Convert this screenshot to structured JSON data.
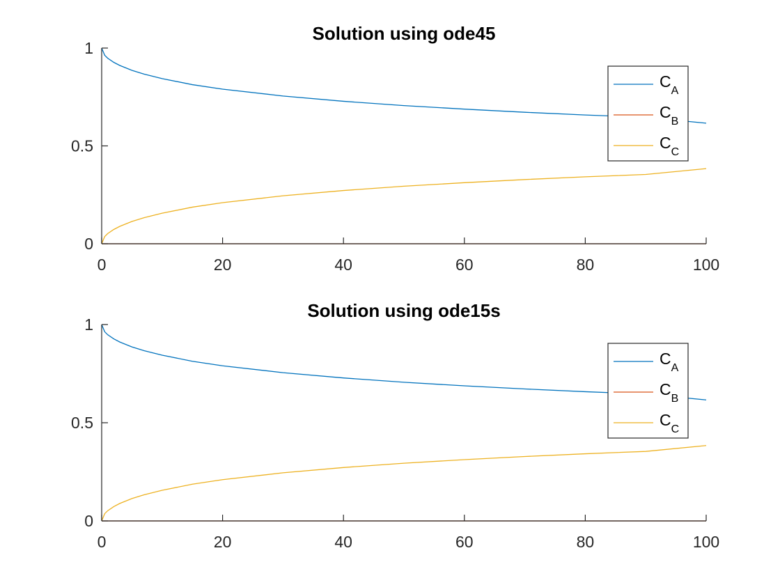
{
  "chart_data": [
    {
      "type": "line",
      "title": "Solution using ode45",
      "xlim": [
        0,
        100
      ],
      "ylim": [
        0,
        1
      ],
      "xticks": [
        0,
        20,
        40,
        60,
        80,
        100
      ],
      "xtick_labels": [
        "0",
        "20",
        "40",
        "60",
        "80",
        "100"
      ],
      "yticks": [
        0,
        0.5,
        1
      ],
      "ytick_labels": [
        "0",
        "0.5",
        "1"
      ],
      "grid": false,
      "legend_position": "top-right",
      "x": [
        0,
        0.5,
        1,
        2,
        3,
        5,
        7,
        10,
        15,
        20,
        30,
        40,
        50,
        60,
        70,
        80,
        90,
        100
      ],
      "series": [
        {
          "name_main": "C",
          "name_sub": "A",
          "color": "#0072BD",
          "values": [
            1.0,
            0.963,
            0.948,
            0.927,
            0.911,
            0.886,
            0.867,
            0.844,
            0.813,
            0.79,
            0.755,
            0.728,
            0.706,
            0.688,
            0.672,
            0.658,
            0.646,
            0.616
          ]
        },
        {
          "name_main": "C",
          "name_sub": "B",
          "color": "#D95319",
          "values": [
            0,
            0,
            0,
            0,
            0,
            0,
            0,
            0,
            0,
            0,
            0,
            0,
            0,
            0,
            0,
            0,
            0,
            0
          ]
        },
        {
          "name_main": "C",
          "name_sub": "C",
          "color": "#EDB120",
          "values": [
            0,
            0.037,
            0.052,
            0.073,
            0.089,
            0.114,
            0.133,
            0.156,
            0.187,
            0.21,
            0.245,
            0.272,
            0.294,
            0.312,
            0.328,
            0.342,
            0.354,
            0.384
          ]
        }
      ]
    },
    {
      "type": "line",
      "title": "Solution using ode15s",
      "xlim": [
        0,
        100
      ],
      "ylim": [
        0,
        1
      ],
      "xticks": [
        0,
        20,
        40,
        60,
        80,
        100
      ],
      "xtick_labels": [
        "0",
        "20",
        "40",
        "60",
        "80",
        "100"
      ],
      "yticks": [
        0,
        0.5,
        1
      ],
      "ytick_labels": [
        "0",
        "0.5",
        "1"
      ],
      "grid": false,
      "legend_position": "top-right",
      "x": [
        0,
        0.5,
        1,
        2,
        3,
        5,
        7,
        10,
        15,
        20,
        30,
        40,
        50,
        60,
        70,
        80,
        90,
        100
      ],
      "series": [
        {
          "name_main": "C",
          "name_sub": "A",
          "color": "#0072BD",
          "values": [
            1.0,
            0.963,
            0.948,
            0.927,
            0.911,
            0.886,
            0.867,
            0.844,
            0.813,
            0.79,
            0.755,
            0.728,
            0.706,
            0.688,
            0.672,
            0.658,
            0.646,
            0.616
          ]
        },
        {
          "name_main": "C",
          "name_sub": "B",
          "color": "#D95319",
          "values": [
            0,
            0,
            0,
            0,
            0,
            0,
            0,
            0,
            0,
            0,
            0,
            0,
            0,
            0,
            0,
            0,
            0,
            0
          ]
        },
        {
          "name_main": "C",
          "name_sub": "C",
          "color": "#EDB120",
          "values": [
            0,
            0.037,
            0.052,
            0.073,
            0.089,
            0.114,
            0.133,
            0.156,
            0.187,
            0.21,
            0.245,
            0.272,
            0.294,
            0.312,
            0.328,
            0.342,
            0.354,
            0.384
          ]
        }
      ]
    }
  ]
}
